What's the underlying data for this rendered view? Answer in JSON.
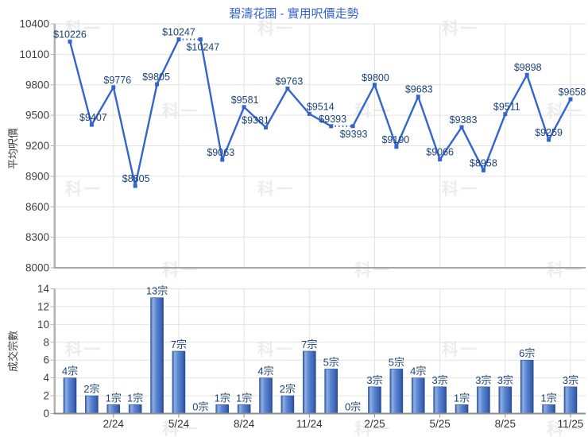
{
  "title": "碧濤花園 - 實用呎價走勢",
  "watermark": "科一",
  "colors": {
    "title": "#3366cc",
    "line": "#3366cc",
    "annotation": "#1b4279",
    "grid": "#e2e2e2",
    "axis_band": "#b3b3b3",
    "baseline_top_chart": "#a6a6a6",
    "baseline_bottom_chart": "#8c8c8c",
    "axis_text": "#404040",
    "xtick_text": "#333333",
    "bar_edge": "#2e57a5",
    "bar_highlight": "#8fafe4",
    "bar_mid": "#5c85d2"
  },
  "chart_data": [
    {
      "type": "line",
      "title": "碧濤花園 - 實用呎價走勢",
      "ylabel": "平均呎價",
      "ylim": [
        8000,
        10400
      ],
      "yticks": [
        8000,
        8300,
        8600,
        8900,
        9200,
        9500,
        9800,
        10100,
        10400
      ],
      "grid": true,
      "xticks": [
        {
          "label": "2/24",
          "index": 2
        },
        {
          "label": "5/24",
          "index": 5
        },
        {
          "label": "8/24",
          "index": 8
        },
        {
          "label": "11/24",
          "index": 11
        },
        {
          "label": "2/25",
          "index": 14
        },
        {
          "label": "5/25",
          "index": 17
        },
        {
          "label": "8/25",
          "index": 20
        },
        {
          "label": "11/25",
          "index": 23
        }
      ],
      "points": [
        {
          "value": 10226,
          "label": "$10226",
          "label_pos": "above",
          "dx": 0
        },
        {
          "value": 9407,
          "label": "$9407",
          "label_pos": "above",
          "dx": 2
        },
        {
          "value": 9776,
          "label": "$9776",
          "label_pos": "above",
          "dx": 5
        },
        {
          "value": 8805,
          "label": "$8805",
          "label_pos": "above",
          "dx": 1
        },
        {
          "value": 9805,
          "label": "$9805",
          "label_pos": "above",
          "dx": -1
        },
        {
          "value": 10247,
          "label": "$10247",
          "label_pos": "above",
          "dx": 0
        },
        {
          "value": 10247,
          "label": "$10247",
          "label_pos": "below",
          "dx": 3
        },
        {
          "value": 9063,
          "label": "$9063",
          "label_pos": "above",
          "dx": -2
        },
        {
          "value": 9581,
          "label": "$9581",
          "label_pos": "above",
          "dx": 1
        },
        {
          "value": 9381,
          "label": "$9381",
          "label_pos": "above",
          "dx": -13
        },
        {
          "value": 9763,
          "label": "$9763",
          "label_pos": "above",
          "dx": 2
        },
        {
          "value": 9514,
          "label": "$9514",
          "label_pos": "above",
          "dx": 14
        },
        {
          "value": 9393,
          "label": "$9393",
          "label_pos": "above",
          "dx": 2
        },
        {
          "value": 9393,
          "label": "$9393",
          "label_pos": "below",
          "dx": 1
        },
        {
          "value": 9800,
          "label": "$9800",
          "label_pos": "above",
          "dx": 1
        },
        {
          "value": 9190,
          "label": "$9190",
          "label_pos": "above",
          "dx": -1
        },
        {
          "value": 9683,
          "label": "$9683",
          "label_pos": "above",
          "dx": 1
        },
        {
          "value": 9066,
          "label": "$9066",
          "label_pos": "above",
          "dx": 0
        },
        {
          "value": 9383,
          "label": "$9383",
          "label_pos": "above",
          "dx": 2
        },
        {
          "value": 8958,
          "label": "$8958",
          "label_pos": "above",
          "dx": 0
        },
        {
          "value": 9511,
          "label": "$9511",
          "label_pos": "above",
          "dx": 2
        },
        {
          "value": 9898,
          "label": "$9898",
          "label_pos": "above",
          "dx": 1
        },
        {
          "value": 9259,
          "label": "$9259",
          "label_pos": "above",
          "dx": 0
        },
        {
          "value": 9658,
          "label": "$9658",
          "label_pos": "above",
          "dx": 2
        }
      ],
      "dotted_segments": [
        [
          5,
          6
        ],
        [
          12,
          13
        ]
      ]
    },
    {
      "type": "bar",
      "ylabel": "成交宗數",
      "ylim": [
        0,
        14
      ],
      "yticks": [
        0,
        2,
        4,
        6,
        8,
        10,
        12,
        14
      ],
      "grid": true,
      "unit": "宗",
      "xticks": [
        {
          "label": "2/24",
          "index": 2
        },
        {
          "label": "5/24",
          "index": 5
        },
        {
          "label": "8/24",
          "index": 8
        },
        {
          "label": "11/24",
          "index": 11
        },
        {
          "label": "2/25",
          "index": 14
        },
        {
          "label": "5/25",
          "index": 17
        },
        {
          "label": "8/25",
          "index": 20
        },
        {
          "label": "11/25",
          "index": 23
        }
      ],
      "values": [
        4,
        2,
        1,
        1,
        13,
        7,
        0,
        1,
        1,
        4,
        2,
        7,
        5,
        0,
        3,
        5,
        4,
        3,
        1,
        3,
        3,
        6,
        1,
        3
      ],
      "labels": [
        "4宗",
        "2宗",
        "1宗",
        "1宗",
        "13宗",
        "7宗",
        "0宗",
        "1宗",
        "1宗",
        "4宗",
        "2宗",
        "7宗",
        "5宗",
        "0宗",
        "3宗",
        "5宗",
        "4宗",
        "3宗",
        "1宗",
        "3宗",
        "3宗",
        "6宗",
        "1宗",
        "3宗"
      ]
    }
  ]
}
